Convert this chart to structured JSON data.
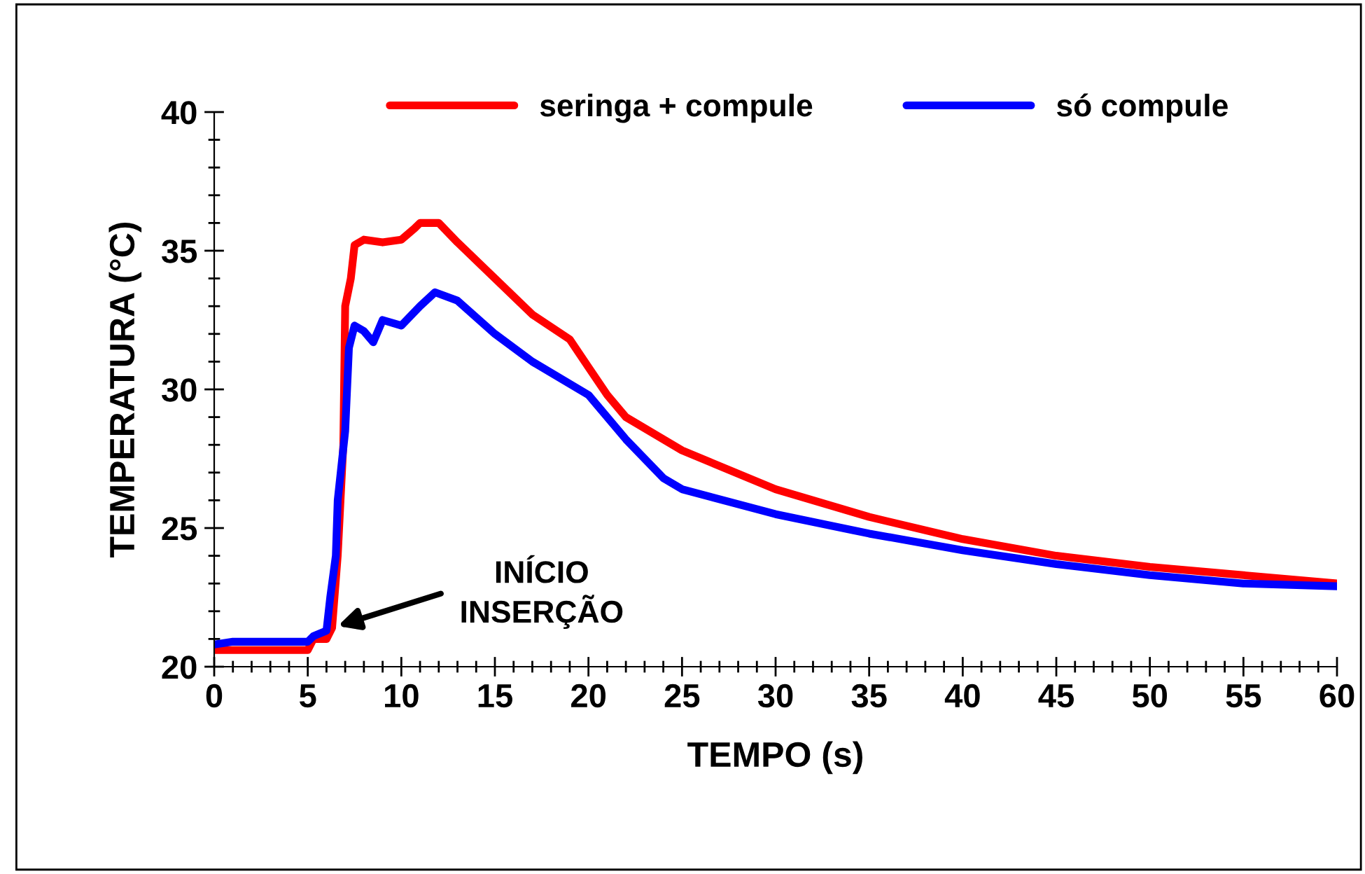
{
  "chart_data": {
    "type": "line",
    "xlabel": "TEMPO (s)",
    "ylabel": "TEMPERATURA (°C)",
    "xlim": [
      0,
      60
    ],
    "xticks": [
      0,
      5,
      10,
      15,
      20,
      25,
      30,
      35,
      40,
      45,
      50,
      55,
      60
    ],
    "ylim": [
      20,
      40
    ],
    "yticks": [
      20,
      25,
      30,
      35,
      40
    ],
    "grid": false,
    "legend": "top",
    "marker": "none",
    "line_style": "solid",
    "annotations": [
      {
        "text": "INÍCIO\nINSERÇÃO",
        "x": 6.3,
        "y": 21.4
      }
    ],
    "series": [
      {
        "name": "seringa + compule",
        "color": "#ff0000",
        "x": [
          0,
          5,
          5.3,
          6,
          6.3,
          6.6,
          6.9,
          7.0,
          7.3,
          7.5,
          8,
          9,
          10,
          10.7,
          11,
          12,
          13,
          15,
          17,
          19,
          20,
          21,
          22,
          25,
          30,
          35,
          40,
          45,
          50,
          55,
          60
        ],
        "values": [
          20.6,
          20.6,
          21.0,
          21.0,
          21.4,
          24,
          28,
          33,
          34,
          35.2,
          35.4,
          35.3,
          35.4,
          35.8,
          36.0,
          36.0,
          35.3,
          34.0,
          32.7,
          31.8,
          30.8,
          29.8,
          29.0,
          27.8,
          26.4,
          25.4,
          24.6,
          24.0,
          23.6,
          23.3,
          23.0
        ]
      },
      {
        "name": "só compule",
        "color": "#0000ff",
        "x": [
          0,
          1,
          5,
          5.3,
          6,
          6.2,
          6.5,
          6.6,
          7,
          7.2,
          7.5,
          8,
          8.5,
          9,
          10,
          11,
          11.8,
          13,
          15,
          17,
          20,
          22,
          24,
          25,
          30,
          35,
          40,
          45,
          50,
          55,
          60
        ],
        "values": [
          20.8,
          20.9,
          20.9,
          21.1,
          21.3,
          22.5,
          24,
          26,
          28.5,
          31.5,
          32.3,
          32.1,
          31.7,
          32.5,
          32.3,
          33.0,
          33.5,
          33.2,
          32.0,
          31.0,
          29.8,
          28.2,
          26.8,
          26.4,
          25.5,
          24.8,
          24.2,
          23.7,
          23.3,
          23.0,
          22.9
        ]
      }
    ]
  }
}
